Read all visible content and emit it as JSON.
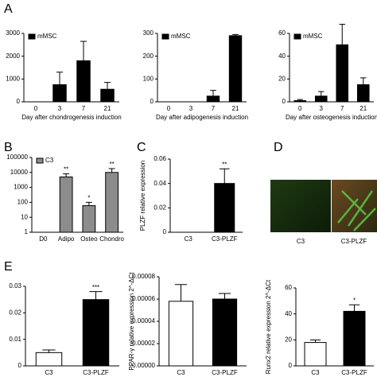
{
  "chart_data": [
    {
      "type": "bar",
      "panel": "A",
      "x_label": "Day after chondrogenesis induction",
      "categories": [
        "0",
        "3",
        "7",
        "21"
      ],
      "series": [
        {
          "name": "mMSC",
          "color": "#000000",
          "values": [
            0,
            750,
            1800,
            550
          ],
          "errors": [
            null,
            550,
            850,
            300
          ]
        }
      ],
      "ylim": [
        0,
        3000
      ],
      "yticks": [
        0,
        1000,
        2000,
        3000
      ],
      "legend": "upper left"
    },
    {
      "type": "bar",
      "x_label": "Day after adipogenesis induction",
      "categories": [
        "0",
        "3",
        "7",
        "21"
      ],
      "series": [
        {
          "name": "mMSC",
          "color": "#000000",
          "values": [
            0,
            0,
            25,
            290
          ],
          "errors": [
            null,
            null,
            25,
            5
          ]
        }
      ],
      "ylim": [
        0,
        300
      ],
      "yticks": [
        0,
        100,
        200,
        300
      ],
      "legend": "upper left"
    },
    {
      "type": "bar",
      "x_label": "Day after osteogenesis induction",
      "categories": [
        "0",
        "3",
        "7",
        "21"
      ],
      "series": [
        {
          "name": "mMSC",
          "color": "#000000",
          "values": [
            1,
            5,
            50,
            15
          ],
          "errors": [
            1,
            4,
            18,
            6
          ]
        }
      ],
      "ylim": [
        0,
        60
      ],
      "yticks": [
        0,
        20,
        40,
        60
      ],
      "legend": "upper left"
    },
    {
      "type": "bar",
      "panel": "B",
      "log_scale": true,
      "categories": [
        "D0",
        "Adipo",
        "Osteo",
        "Chondro"
      ],
      "series": [
        {
          "name": "C3",
          "color": "#8c8c8c",
          "values": [
            1,
            5000,
            60,
            10000
          ],
          "errors": [
            null,
            3000,
            40,
            8000
          ]
        }
      ],
      "annotations": [
        null,
        "**",
        "*",
        "**"
      ],
      "ylim": [
        1,
        100000
      ],
      "yticks": [
        1,
        10,
        100,
        1000,
        10000,
        100000
      ],
      "legend": "upper left"
    },
    {
      "type": "bar",
      "panel": "C",
      "y_label": "PLZF relative expression",
      "categories": [
        "C3",
        "C3-PLZF"
      ],
      "series": [
        {
          "colors": [
            "#000000",
            "#000000"
          ],
          "values": [
            0,
            0.04
          ],
          "errors": [
            null,
            0.012
          ]
        }
      ],
      "annotations": [
        null,
        "**"
      ],
      "ylim": [
        0,
        0.06
      ],
      "yticks": [
        0,
        0.02,
        0.04,
        0.06
      ]
    },
    {
      "type": "bar",
      "panel": "E",
      "categories": [
        "C3",
        "C3-PLZF"
      ],
      "series": [
        {
          "colors": [
            "#ffffff",
            "#000000"
          ],
          "values": [
            0.005,
            0.025
          ],
          "errors": [
            0.001,
            0.003
          ]
        }
      ],
      "annotations": [
        null,
        "***"
      ],
      "ylim": [
        0,
        0.03
      ],
      "yticks": [
        0,
        0.01,
        0.02,
        0.03
      ]
    },
    {
      "type": "bar",
      "y_label": "PPAR-γ relative expression 2^-ΔCt",
      "categories": [
        "C3",
        "C3-PLZF"
      ],
      "series": [
        {
          "colors": [
            "#ffffff",
            "#000000"
          ],
          "values": [
            5.8e-05,
            6e-05
          ],
          "errors": [
            1.5e-05,
            5e-06
          ]
        }
      ],
      "ylim": [
        0,
        8e-05
      ],
      "yticks": [
        {
          "value": 0,
          "label": "0.00000"
        },
        {
          "value": 2e-05,
          "label": "0.00002"
        },
        {
          "value": 4e-05,
          "label": "0.00004"
        },
        {
          "value": 6e-05,
          "label": "0.00006"
        },
        {
          "value": 8e-05,
          "label": "0.00008"
        }
      ]
    },
    {
      "type": "bar",
      "y_label": "Runx2 relative expression 2^-ΔCt",
      "categories": [
        "C3",
        "C3-PLZF"
      ],
      "series": [
        {
          "colors": [
            "#ffffff",
            "#000000"
          ],
          "values": [
            18,
            42
          ],
          "errors": [
            2,
            5
          ]
        }
      ],
      "annotations": [
        null,
        "*"
      ],
      "ylim": [
        0,
        60
      ],
      "yticks": [
        0,
        20,
        40,
        60
      ]
    }
  ],
  "image_panel": {
    "label": "D",
    "image_labels": [
      "C3",
      "C3-PLZF"
    ]
  }
}
